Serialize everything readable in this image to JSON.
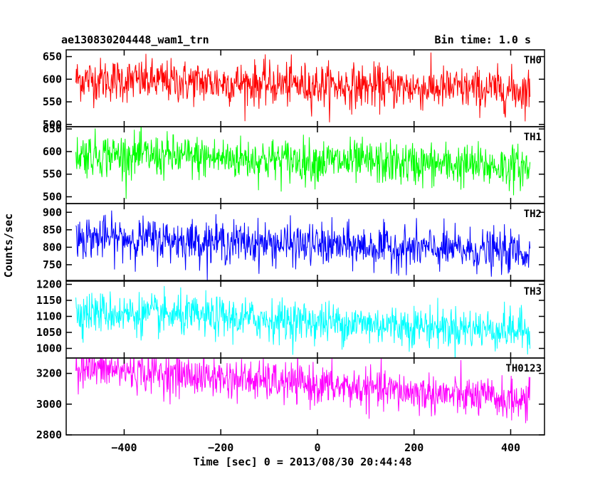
{
  "chart_data": {
    "type": "line",
    "title": "ae130830204448_wam1_trn",
    "subtitle": "Bin time: 1.0 s",
    "xlabel": "Time [sec] 0 = 2013/08/30 20:44:48",
    "ylabel": "Counts/sec",
    "xlim": [
      -520,
      470
    ],
    "x_range": [
      -500,
      440
    ],
    "x_ticks": [
      -400,
      -200,
      0,
      200,
      400
    ],
    "x_tick_labels": [
      "−400",
      "−200",
      "0",
      "200",
      "400"
    ],
    "grid": false,
    "legend": "none",
    "panels": [
      {
        "name": "TH0",
        "color": "#ff0000",
        "ylim": [
          495,
          665
        ],
        "y_ticks": [
          500,
          550,
          600,
          650
        ],
        "mean": [
          600,
          575
        ],
        "noise": 24
      },
      {
        "name": "TH1",
        "color": "#00ff00",
        "ylim": [
          485,
          655
        ],
        "y_ticks": [
          500,
          550,
          600,
          650
        ],
        "mean": [
          595,
          565
        ],
        "noise": 24
      },
      {
        "name": "TH2",
        "color": "#0000ff",
        "ylim": [
          705,
          925
        ],
        "y_ticks": [
          750,
          800,
          850,
          900
        ],
        "mean": [
          830,
          785
        ],
        "noise": 30
      },
      {
        "name": "TH3",
        "color": "#00ffff",
        "ylim": [
          970,
          1210
        ],
        "y_ticks": [
          1000,
          1050,
          1100,
          1150,
          1200
        ],
        "mean": [
          1115,
          1055
        ],
        "noise": 32
      },
      {
        "name": "TH0123",
        "color": "#ff00ff",
        "ylim": [
          2800,
          3300
        ],
        "y_ticks": [
          2800,
          3000,
          3200
        ],
        "mean": [
          3240,
          3020
        ],
        "noise": 65
      }
    ]
  }
}
